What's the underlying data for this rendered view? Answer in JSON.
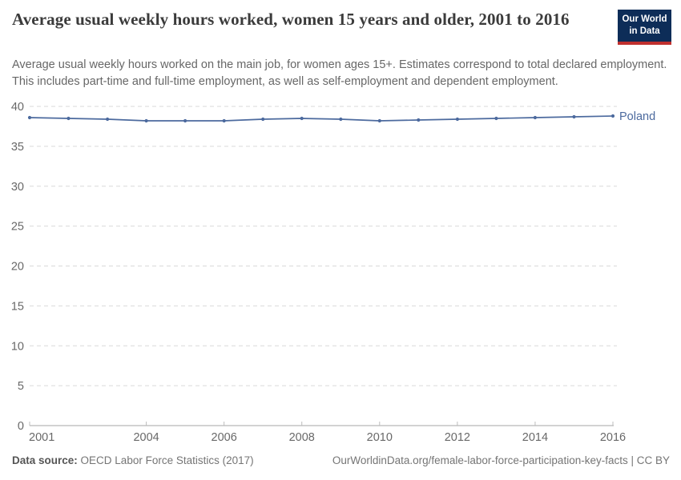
{
  "header": {
    "title": "Average usual weekly hours worked, women 15 years and older, 2001 to 2016",
    "subtitle": "Average usual weekly hours worked on the main job, for women ages 15+. Estimates correspond to total declared employment. This includes part-time and full-time employment, as well as self-employment and dependent employment.",
    "logo": {
      "line1": "Our World",
      "line2": "in Data",
      "bg_color": "#0d2d58",
      "accent_color": "#c0302e"
    }
  },
  "chart_data": {
    "type": "line",
    "title": "Average usual weekly hours worked, women 15 years and older, 2001 to 2016",
    "xlabel": "",
    "ylabel": "",
    "x": [
      2001,
      2002,
      2003,
      2004,
      2005,
      2006,
      2007,
      2008,
      2009,
      2010,
      2011,
      2012,
      2013,
      2014,
      2015,
      2016
    ],
    "series": [
      {
        "name": "Poland",
        "values": [
          38.6,
          38.5,
          38.4,
          38.2,
          38.2,
          38.2,
          38.4,
          38.5,
          38.4,
          38.2,
          38.3,
          38.4,
          38.5,
          38.6,
          38.7,
          38.8
        ],
        "color": "#4c6a9e"
      }
    ],
    "ylim": [
      0,
      40
    ],
    "yticks": [
      0,
      5,
      10,
      15,
      20,
      25,
      30,
      35,
      40
    ],
    "xticks": [
      2001,
      2004,
      2006,
      2008,
      2010,
      2012,
      2014,
      2016
    ],
    "grid": "dashed horizontal gridlines",
    "legend_position": "end-of-line label",
    "colors": {
      "gridline": "#d9d9d9",
      "axis": "#a5a5a5",
      "tick_label": "#686868"
    }
  },
  "footer": {
    "source_label": "Data source:",
    "source_text": "OECD Labor Force Statistics (2017)",
    "credit": "OurWorldinData.org/female-labor-force-participation-key-facts | CC BY"
  }
}
